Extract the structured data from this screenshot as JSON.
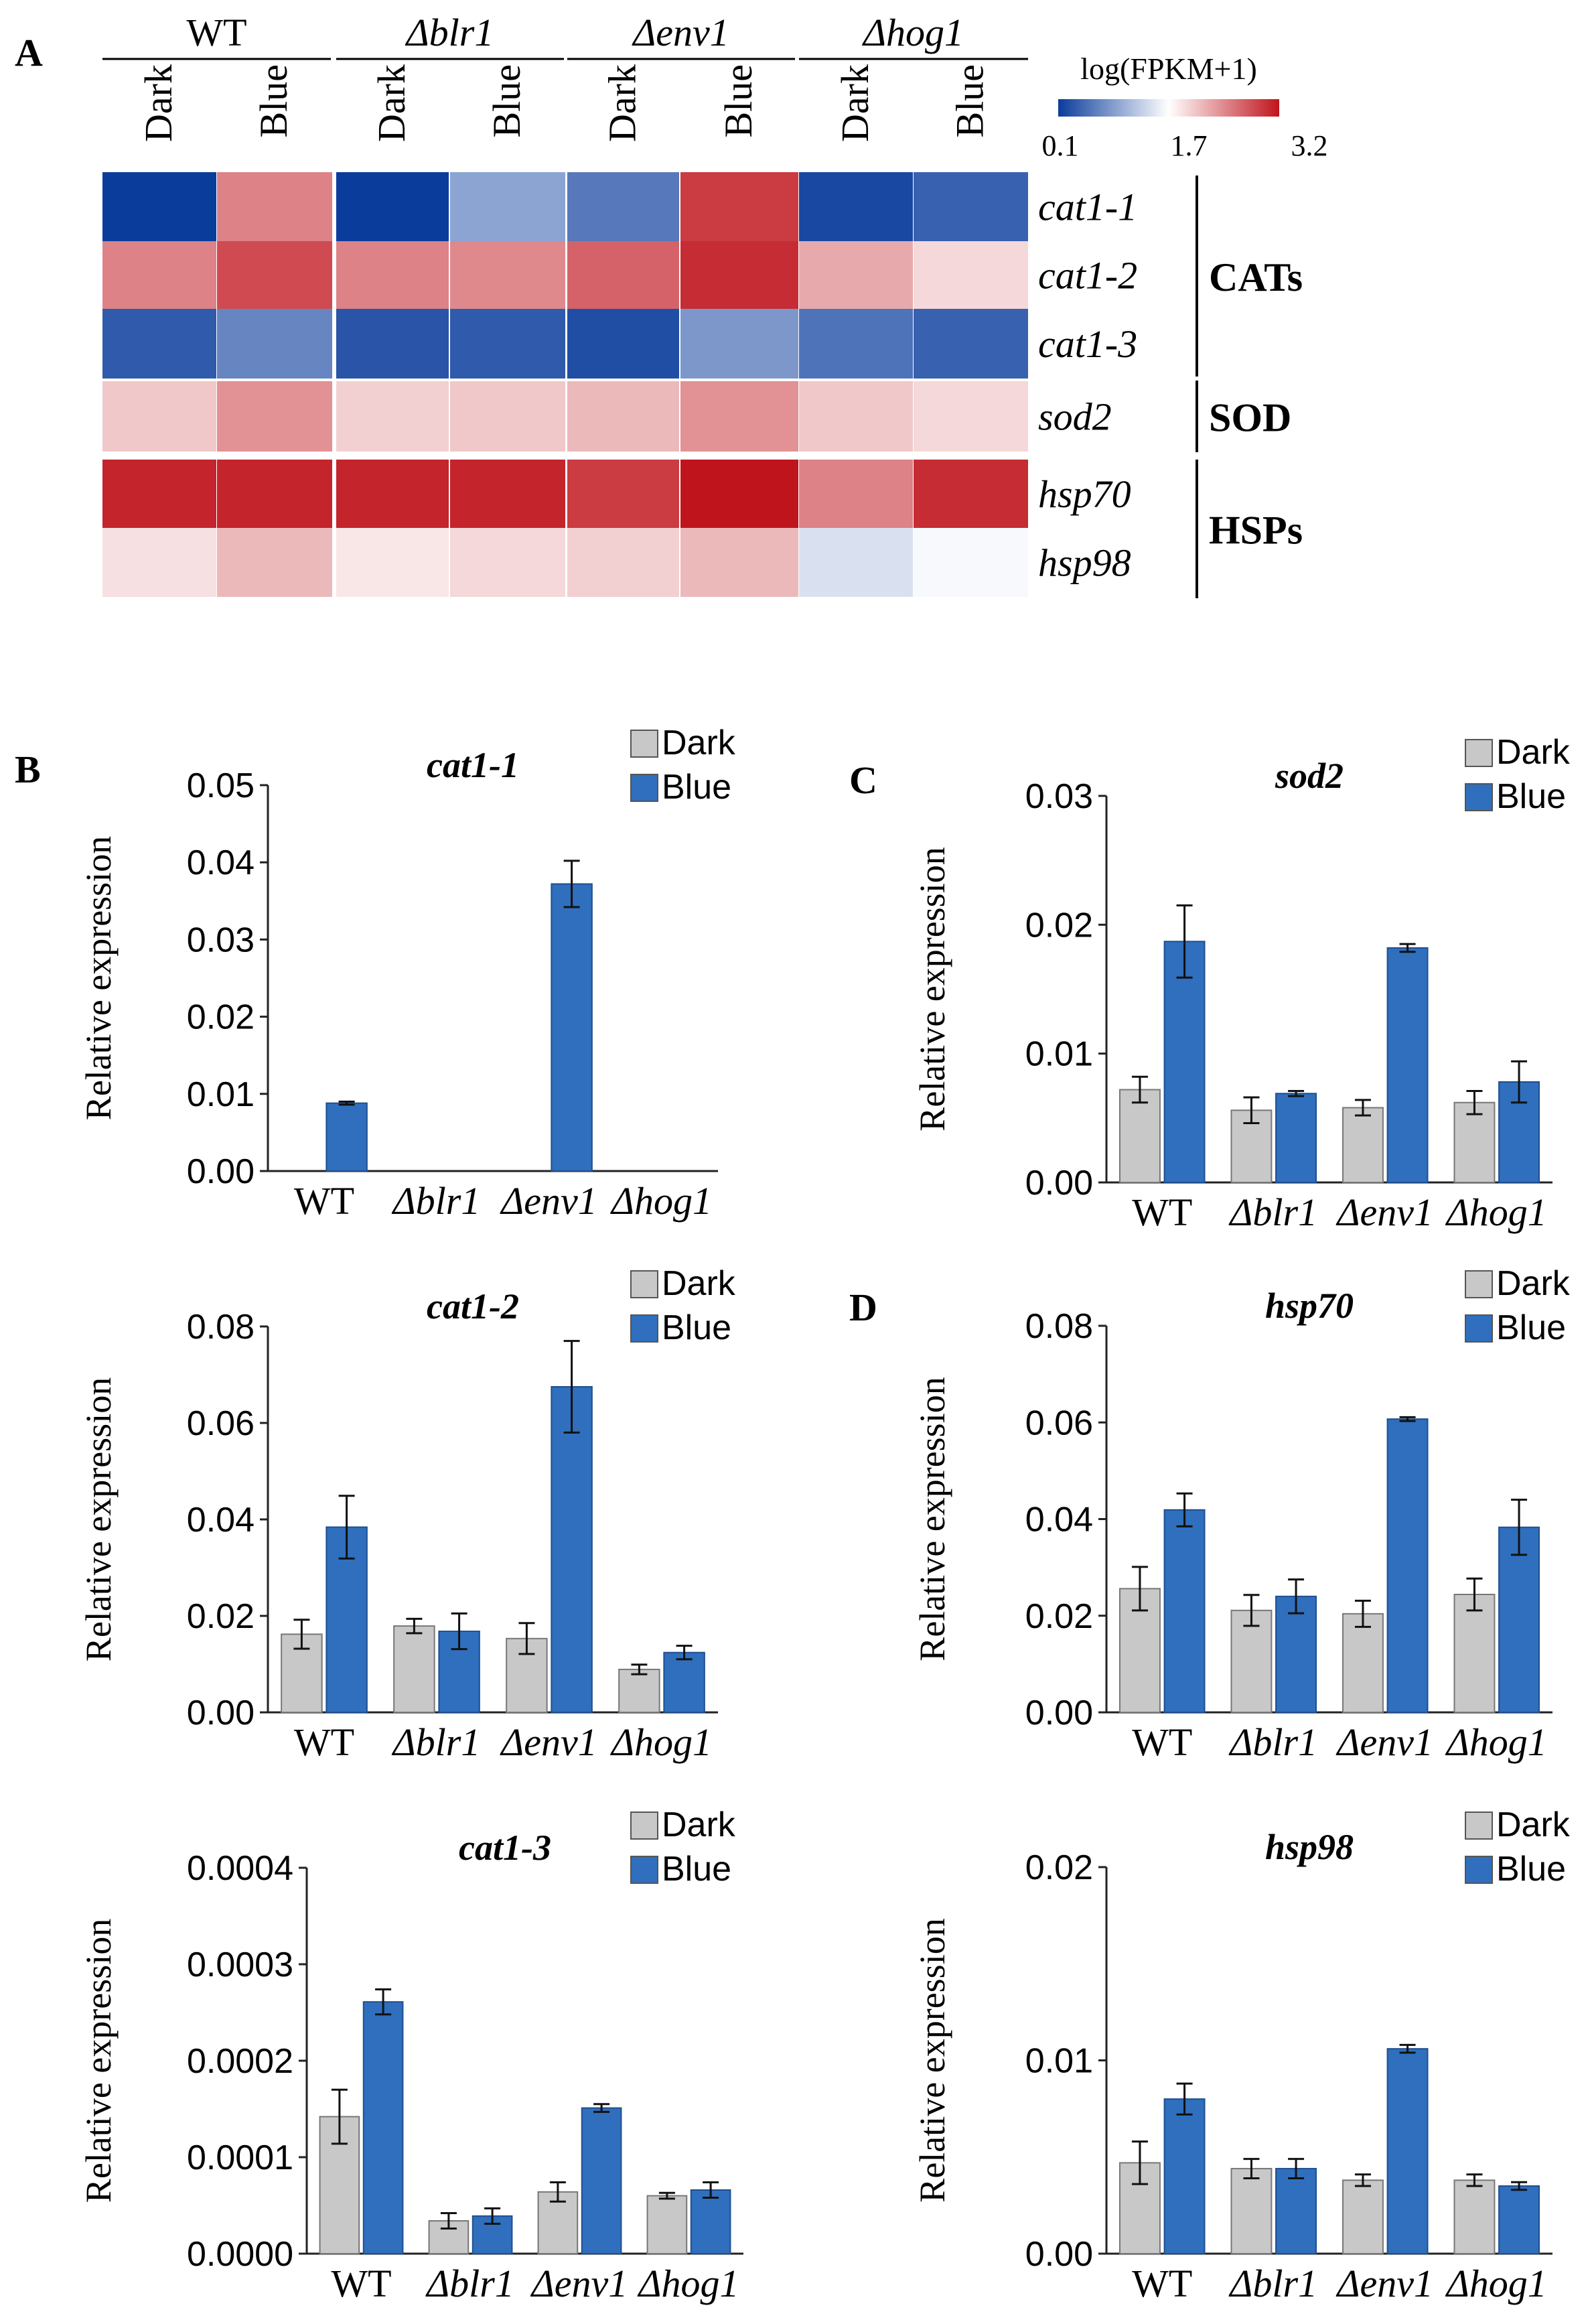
{
  "panel_labels": {
    "a": "A",
    "b": "B",
    "c": "C",
    "d": "D"
  },
  "heatmap": {
    "strains": [
      "WT",
      "Δblr1",
      "Δenv1",
      "Δhog1"
    ],
    "conditions": [
      "Dark",
      "Blue"
    ],
    "genes": [
      "cat1-1",
      "cat1-2",
      "cat1-3",
      "sod2",
      "hsp70",
      "hsp98"
    ],
    "groups": [
      {
        "label": "CATs",
        "genes": [
          "cat1-1",
          "cat1-2",
          "cat1-3"
        ]
      },
      {
        "label": "SOD",
        "genes": [
          "sod2"
        ]
      },
      {
        "label": "HSPs",
        "genes": [
          "hsp70",
          "hsp98"
        ]
      }
    ],
    "legend": {
      "title": "log(FPKM+1)",
      "min_label": "0.1",
      "mid_label": "1.7",
      "max_label": "3.2",
      "min": 0.1,
      "mid": 1.7,
      "max": 3.2,
      "color_low": "#0a3c9c",
      "color_mid": "#ffffff",
      "color_high": "#c0141c"
    },
    "values": [
      [
        0.1,
        2.5,
        0.1,
        0.95,
        0.6,
        2.95,
        0.2,
        0.4
      ],
      [
        2.5,
        2.85,
        2.5,
        2.45,
        2.7,
        3.05,
        2.25,
        1.95
      ],
      [
        0.35,
        0.7,
        0.3,
        0.35,
        0.25,
        0.85,
        0.55,
        0.4
      ],
      [
        2.05,
        2.4,
        2.0,
        2.05,
        2.15,
        2.4,
        2.05,
        1.95
      ],
      [
        3.1,
        3.1,
        3.1,
        3.1,
        2.95,
        3.25,
        2.5,
        3.05
      ],
      [
        1.9,
        2.15,
        1.85,
        1.95,
        2.0,
        2.15,
        1.45,
        1.65
      ]
    ]
  },
  "chart_data": [
    {
      "id": "cat1-1",
      "type": "bar",
      "title": "cat1-1",
      "ylabel": "Relative expression",
      "yticks": [
        "0.00",
        "0.01",
        "0.02",
        "0.03",
        "0.04",
        "0.05"
      ],
      "ylim": [
        0,
        0.05
      ],
      "categories": [
        "WT",
        "Δblr1",
        "Δenv1",
        "Δhog1"
      ],
      "series": [
        {
          "name": "Dark",
          "color": "#c8c8c8",
          "values": [
            0,
            0,
            0,
            0
          ],
          "errors": [
            0,
            0,
            0,
            0
          ]
        },
        {
          "name": "Blue",
          "color": "#2f6fbd",
          "values": [
            0.0088,
            0,
            0.0372,
            0
          ],
          "errors": [
            0.0002,
            0,
            0.003,
            0
          ]
        }
      ]
    },
    {
      "id": "cat1-2",
      "type": "bar",
      "title": "cat1-2",
      "ylabel": "Relative expression",
      "yticks": [
        "0.00",
        "0.02",
        "0.04",
        "0.06",
        "0.08"
      ],
      "ylim": [
        0,
        0.08
      ],
      "categories": [
        "WT",
        "Δblr1",
        "Δenv1",
        "Δhog1"
      ],
      "series": [
        {
          "name": "Dark",
          "color": "#c8c8c8",
          "values": [
            0.0162,
            0.0179,
            0.0153,
            0.0089
          ],
          "errors": [
            0.003,
            0.0015,
            0.0032,
            0.001
          ]
        },
        {
          "name": "Blue",
          "color": "#2f6fbd",
          "values": [
            0.0384,
            0.0168,
            0.0675,
            0.0124
          ],
          "errors": [
            0.0065,
            0.0037,
            0.0095,
            0.0014
          ]
        }
      ]
    },
    {
      "id": "cat1-3",
      "type": "bar",
      "title": "cat1-3",
      "ylabel": "Relative expression",
      "yticks": [
        "0.0000",
        "0.0001",
        "0.0002",
        "0.0003",
        "0.0004"
      ],
      "ylim": [
        0,
        0.0004
      ],
      "categories": [
        "WT",
        "Δblr1",
        "Δenv1",
        "Δhog1"
      ],
      "series": [
        {
          "name": "Dark",
          "color": "#c8c8c8",
          "values": [
            0.000142,
            3.4e-05,
            6.4e-05,
            6e-05
          ],
          "errors": [
            2.8e-05,
            8e-06,
            1e-05,
            3e-06
          ]
        },
        {
          "name": "Blue",
          "color": "#2f6fbd",
          "values": [
            0.000261,
            3.9e-05,
            0.000151,
            6.6e-05
          ],
          "errors": [
            1.3e-05,
            8e-06,
            4e-06,
            8e-06
          ]
        }
      ]
    },
    {
      "id": "sod2",
      "type": "bar",
      "title": "sod2",
      "ylabel": "Relative expression",
      "yticks": [
        "0.00",
        "0.01",
        "0.02",
        "0.03"
      ],
      "ylim": [
        0,
        0.03
      ],
      "categories": [
        "WT",
        "Δblr1",
        "Δenv1",
        "Δhog1"
      ],
      "series": [
        {
          "name": "Dark",
          "color": "#c8c8c8",
          "values": [
            0.0072,
            0.0056,
            0.0058,
            0.0062
          ],
          "errors": [
            0.001,
            0.001,
            0.0006,
            0.0009
          ]
        },
        {
          "name": "Blue",
          "color": "#2f6fbd",
          "values": [
            0.0187,
            0.0069,
            0.0182,
            0.0078
          ],
          "errors": [
            0.0028,
            0.0002,
            0.0003,
            0.0016
          ]
        }
      ]
    },
    {
      "id": "hsp70",
      "type": "bar",
      "title": "hsp70",
      "ylabel": "Relative expression",
      "yticks": [
        "0.00",
        "0.02",
        "0.04",
        "0.06",
        "0.08"
      ],
      "ylim": [
        0,
        0.08
      ],
      "categories": [
        "WT",
        "Δblr1",
        "Δenv1",
        "Δhog1"
      ],
      "series": [
        {
          "name": "Dark",
          "color": "#c8c8c8",
          "values": [
            0.0256,
            0.0211,
            0.0204,
            0.0244
          ],
          "errors": [
            0.0045,
            0.0032,
            0.0027,
            0.0033
          ]
        },
        {
          "name": "Blue",
          "color": "#2f6fbd",
          "values": [
            0.0419,
            0.024,
            0.0607,
            0.0383
          ],
          "errors": [
            0.0034,
            0.0035,
            0.0004,
            0.0057
          ]
        }
      ]
    },
    {
      "id": "hsp98",
      "type": "bar",
      "title": "hsp98",
      "ylabel": "Relative expression",
      "yticks": [
        "0.00",
        "0.01",
        "0.02"
      ],
      "ylim": [
        0,
        0.02
      ],
      "categories": [
        "WT",
        "Δblr1",
        "Δenv1",
        "Δhog1"
      ],
      "series": [
        {
          "name": "Dark",
          "color": "#c8c8c8",
          "values": [
            0.0047,
            0.0044,
            0.0038,
            0.0038
          ],
          "errors": [
            0.0011,
            0.0005,
            0.0003,
            0.0003
          ]
        },
        {
          "name": "Blue",
          "color": "#2f6fbd",
          "values": [
            0.008,
            0.0044,
            0.0106,
            0.0035
          ],
          "errors": [
            0.0008,
            0.0005,
            0.0002,
            0.0002
          ]
        }
      ]
    }
  ]
}
